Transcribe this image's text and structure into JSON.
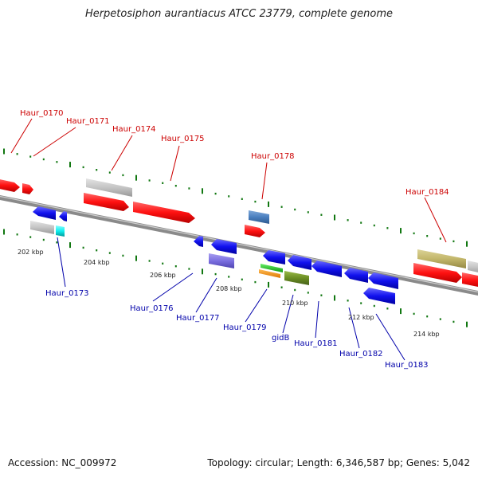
{
  "title": "Herpetosiphon aurantiacus ATCC 23779, complete genome",
  "footer": {
    "accession": "Accession: NC_009972",
    "stats": "Topology: circular; Length: 6,346,587 bp; Genes: 5,042"
  },
  "colors": {
    "forward": "#ff1111",
    "reverse": "#1111ee",
    "backbone": "#888888",
    "tick": "#117711",
    "label_top": "#cc0000",
    "label_bottom": "#0000aa"
  },
  "kbp_labels": [
    "202 kbp",
    "204 kbp",
    "206 kbp",
    "208 kbp",
    "210 kbp",
    "212 kbp",
    "214 kbp"
  ],
  "top_labels": [
    "Haur_0170",
    "Haur_0171",
    "Haur_0174",
    "Haur_0175",
    "Haur_0178",
    "Haur_0184"
  ],
  "bottom_labels": [
    "Haur_0173",
    "Haur_0176",
    "Haur_0177",
    "Haur_0179",
    "gidB",
    "Haur_0181",
    "Haur_0182",
    "Haur_0183"
  ]
}
